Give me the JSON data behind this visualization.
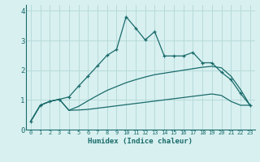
{
  "xlabel": "Humidex (Indice chaleur)",
  "background_color": "#d8f0f0",
  "grid_color": "#b8dada",
  "line_color": "#1a6b6b",
  "xlim": [
    -0.5,
    23.5
  ],
  "ylim": [
    0,
    4.2
  ],
  "xticks": [
    0,
    1,
    2,
    3,
    4,
    5,
    6,
    7,
    8,
    9,
    10,
    11,
    12,
    13,
    14,
    15,
    16,
    17,
    18,
    19,
    20,
    21,
    22,
    23
  ],
  "yticks": [
    0,
    1,
    2,
    3,
    4
  ],
  "line1_x": [
    0,
    1,
    2,
    3,
    4,
    5,
    6,
    7,
    8,
    9,
    10,
    11,
    12,
    13,
    14,
    15,
    16,
    17,
    18,
    19,
    20,
    21,
    22,
    23
  ],
  "line1_y": [
    0.28,
    0.82,
    0.95,
    1.02,
    1.1,
    1.46,
    1.8,
    2.15,
    2.5,
    2.7,
    3.8,
    3.42,
    3.02,
    3.3,
    2.48,
    2.48,
    2.48,
    2.6,
    2.25,
    2.25,
    1.93,
    1.68,
    1.22,
    0.82
  ],
  "line2_x": [
    0,
    1,
    2,
    3,
    4,
    5,
    6,
    7,
    8,
    9,
    10,
    11,
    12,
    13,
    14,
    15,
    16,
    17,
    18,
    19,
    20,
    21,
    22,
    23
  ],
  "line2_y": [
    0.28,
    0.82,
    0.95,
    1.02,
    0.65,
    0.78,
    0.97,
    1.15,
    1.32,
    1.45,
    1.58,
    1.68,
    1.77,
    1.85,
    1.9,
    1.95,
    2.0,
    2.05,
    2.1,
    2.13,
    2.08,
    1.8,
    1.35,
    0.82
  ],
  "line3_x": [
    0,
    1,
    2,
    3,
    4,
    5,
    6,
    7,
    8,
    9,
    10,
    11,
    12,
    13,
    14,
    15,
    16,
    17,
    18,
    19,
    20,
    21,
    22,
    23
  ],
  "line3_y": [
    0.28,
    0.82,
    0.95,
    1.02,
    0.65,
    0.66,
    0.68,
    0.72,
    0.76,
    0.8,
    0.84,
    0.88,
    0.92,
    0.96,
    1.0,
    1.04,
    1.08,
    1.12,
    1.16,
    1.2,
    1.15,
    0.95,
    0.82,
    0.82
  ]
}
